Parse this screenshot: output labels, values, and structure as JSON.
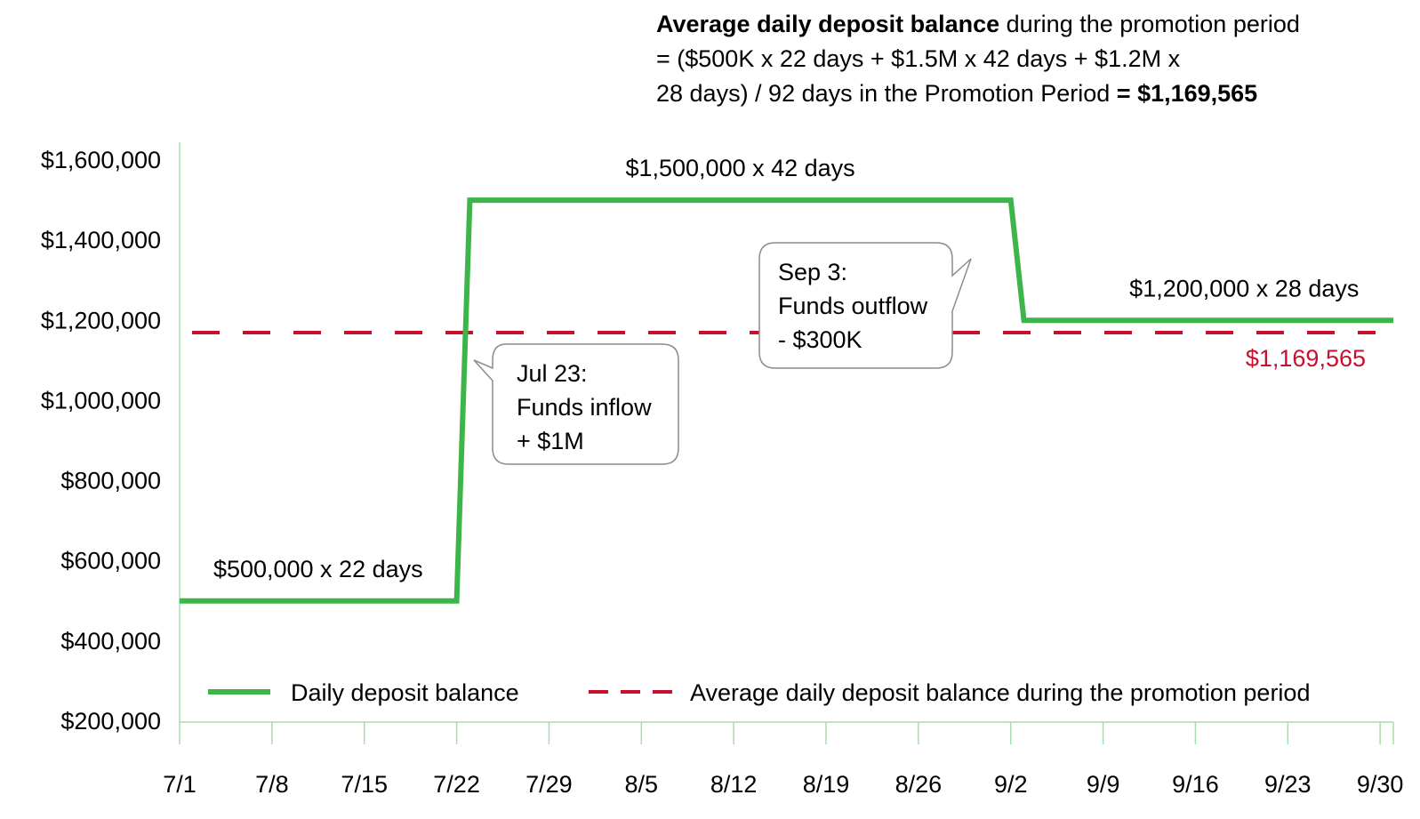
{
  "formula": {
    "line1_bold": "Average daily deposit balance",
    "line1_rest": " during the promotion period",
    "line2": "= ($500K  x 22 days + $1.5M x 42 days + $1.2M x",
    "line3_rest": "28 days) / 92 days in the Promotion Period ",
    "line3_bold": "= $1,169,565"
  },
  "chart_data": {
    "type": "line",
    "title": "",
    "xlabel": "",
    "ylabel": "",
    "ylim": [
      200000,
      1600000
    ],
    "y_ticks": [
      "$200,000",
      "$400,000",
      "$600,000",
      "$800,000",
      "$1,000,000",
      "$1,200,000",
      "$1,400,000",
      "$1,600,000"
    ],
    "y_tick_values": [
      200000,
      400000,
      600000,
      800000,
      1000000,
      1200000,
      1400000,
      1600000
    ],
    "x_ticks": [
      "7/1",
      "7/8",
      "7/15",
      "7/22",
      "7/29",
      "8/5",
      "8/12",
      "8/19",
      "8/26",
      "9/2",
      "9/9",
      "9/16",
      "9/23",
      "9/30"
    ],
    "x_tick_days": [
      0,
      7,
      14,
      21,
      28,
      35,
      42,
      49,
      56,
      63,
      70,
      77,
      84,
      91
    ],
    "xlim_days": [
      0,
      92
    ],
    "grid": false,
    "legend_position": "bottom",
    "series": [
      {
        "name": "Daily deposit balance",
        "color": "#3cb54a",
        "style": "solid",
        "x_days": [
          0,
          21,
          22,
          63,
          64,
          92
        ],
        "values": [
          500000,
          500000,
          1500000,
          1500000,
          1200000,
          1200000
        ]
      },
      {
        "name": "Average daily deposit balance during the promotion period",
        "color": "#c8102e",
        "style": "dashed",
        "x_days": [
          0,
          92
        ],
        "values": [
          1169565,
          1169565
        ]
      }
    ],
    "segment_labels": [
      {
        "text": "$500,000 x 22 days"
      },
      {
        "text": "$1,500,000 x 42 days"
      },
      {
        "text": "$1,200,000  x 28 days"
      }
    ],
    "average_label": "$1,169,565",
    "callouts": [
      {
        "lines": [
          "Jul 23:",
          "Funds inflow",
          "+ $1M"
        ]
      },
      {
        "lines": [
          "Sep 3:",
          "Funds outflow",
          "- $300K"
        ]
      }
    ]
  }
}
